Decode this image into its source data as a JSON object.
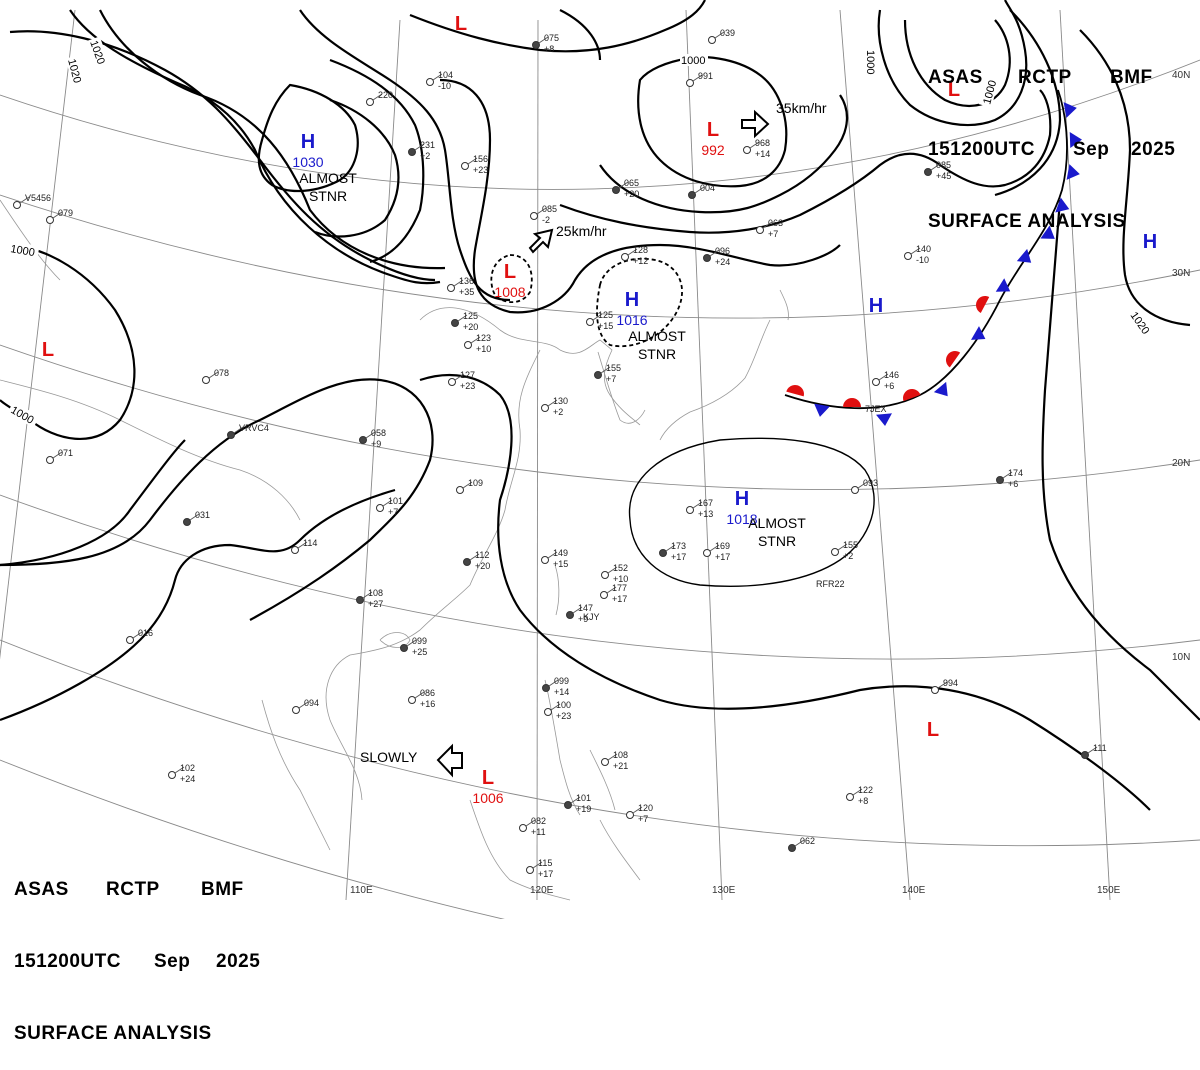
{
  "header": {
    "line1": [
      "ASAS",
      "RCTP",
      "BMF"
    ],
    "line2": [
      "151200UTC",
      "Sep",
      "2025"
    ],
    "line3": "SURFACE ANALYSIS"
  },
  "longitude_labels": [
    "110E",
    "120E",
    "130E",
    "140E",
    "150E"
  ],
  "latitude_labels": [
    "40N",
    "30N",
    "20N",
    "10N"
  ],
  "isobar_labels": [
    "1020",
    "1020",
    "1000",
    "1000",
    "1000",
    "1000",
    "1020"
  ],
  "pressure_centers": [
    {
      "type": "H",
      "value": "1030",
      "note1": "ALMOST",
      "note2": "STNR",
      "color": "#1a1acc"
    },
    {
      "type": "H",
      "value": "1016",
      "note1": "ALMOST",
      "note2": "STNR",
      "color": "#1a1acc"
    },
    {
      "type": "H",
      "value": "1018",
      "note1": "ALMOST",
      "note2": "STNR",
      "color": "#1a1acc"
    },
    {
      "type": "L",
      "value": "1008",
      "color": "#e01010"
    },
    {
      "type": "L",
      "value": "992",
      "color": "#e01010"
    },
    {
      "type": "L",
      "value": "1006",
      "color": "#e01010"
    },
    {
      "type": "L",
      "value": "",
      "color": "#e01010"
    },
    {
      "type": "L",
      "value": "",
      "color": "#e01010"
    },
    {
      "type": "L",
      "value": "",
      "color": "#e01010"
    },
    {
      "type": "L",
      "value": "",
      "color": "#e01010"
    },
    {
      "type": "H",
      "value": "",
      "color": "#1a1acc"
    },
    {
      "type": "H",
      "value": "",
      "color": "#1a1acc"
    }
  ],
  "movements": [
    "35km/hr",
    "25km/hr",
    "SLOWLY"
  ],
  "station_texts": [
    "075",
    "+8",
    "104",
    "-10",
    "220",
    "231",
    "+2",
    "156",
    "+23",
    "085",
    "-2",
    "065",
    "+20",
    "039",
    "991",
    "004",
    "968",
    "+14",
    "063",
    "+7",
    "096",
    "+24",
    "128",
    "+12",
    "140",
    "-10",
    "085",
    "+45",
    "136",
    "+35",
    "123",
    "+10",
    "125",
    "+20",
    "127",
    "+23",
    "125",
    "+15",
    "155",
    "+7",
    "130",
    "+2",
    "146",
    "+6",
    "058",
    "+9",
    "101",
    "+7",
    "109",
    "112",
    "+20",
    "149",
    "+15",
    "152",
    "+10",
    "147",
    "+9",
    "177",
    "+17",
    "167",
    "+13",
    "173",
    "+17",
    "169",
    "+17",
    "155",
    "+2",
    "174",
    "+6",
    "093",
    "114",
    "108",
    "+27",
    "086",
    "+16",
    "094",
    "099",
    "+25",
    "102",
    "+24",
    "082",
    "+11",
    "099",
    "+14",
    "100",
    "+23",
    "108",
    "+21",
    "101",
    "+19",
    "120",
    "+7",
    "115",
    "+17",
    "111",
    "122",
    "+8",
    "994",
    "062",
    "079",
    "071",
    "031",
    "078",
    "016",
    "VRVC4",
    "V5456",
    "7JEX",
    "RFR22",
    "KJY"
  ],
  "front_colors": {
    "warm": "#e01010",
    "cold": "#1a1acc"
  }
}
